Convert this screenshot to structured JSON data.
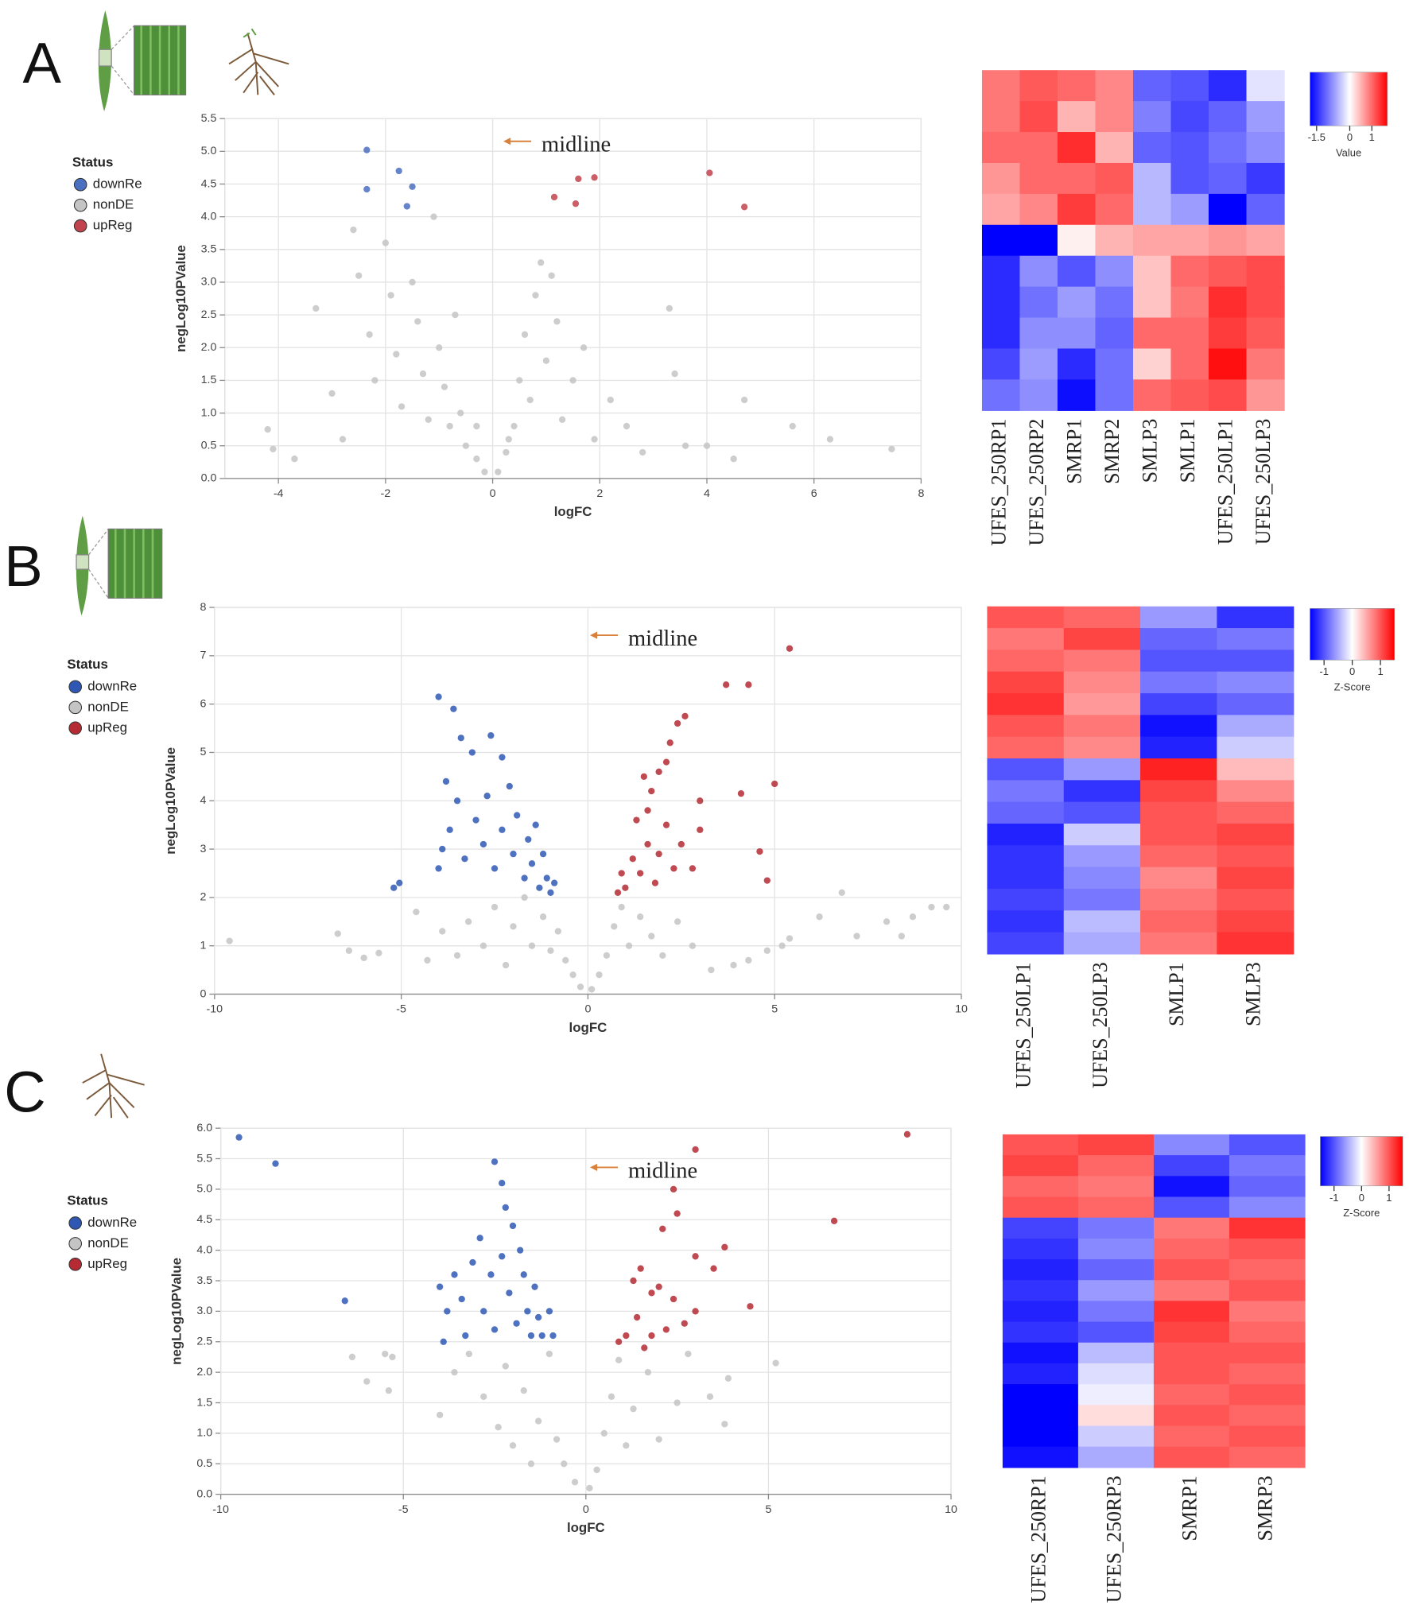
{
  "chart_data": [
    {
      "type": "scatter",
      "panel": "A",
      "annotation": "midline",
      "xlabel": "logFC",
      "ylabel": "negLog10PValue",
      "legend_title": "Status",
      "grid": true,
      "xlim": [
        -5,
        8
      ],
      "ylim": [
        0,
        5.5
      ],
      "xticks": [
        -4,
        -2,
        0,
        2,
        4,
        6,
        8
      ],
      "yticks": [
        {
          "value": 0,
          "label": "0.0"
        },
        0.5,
        {
          "value": 1,
          "label": "1.0"
        },
        1.5,
        {
          "value": 2,
          "label": "2.0"
        },
        2.5,
        {
          "value": 3,
          "label": "3.0"
        },
        3.5,
        {
          "value": 4,
          "label": "4.0"
        },
        4.5,
        {
          "value": 5,
          "label": "5.0"
        },
        5.5
      ],
      "series": [
        {
          "name": "downRe",
          "color": "#4b6fc1",
          "x": [
            -2.35,
            -2.35,
            -1.75,
            -1.5,
            -1.6
          ],
          "values": [
            5.02,
            4.42,
            4.7,
            4.46,
            4.16
          ]
        },
        {
          "name": "nonDE",
          "color": "#c4c4c4",
          "x": [
            -4.2,
            -4.1,
            -3.7,
            -3.3,
            -3.0,
            -2.8,
            -2.6,
            -2.5,
            -2.3,
            -2.2,
            -2.0,
            -1.9,
            -1.8,
            -1.7,
            -1.5,
            -1.4,
            -1.3,
            -1.2,
            -1.0,
            -0.9,
            -0.8,
            -0.6,
            -0.5,
            -0.3,
            -0.15,
            0.1,
            0.25,
            0.4,
            0.5,
            0.6,
            0.7,
            0.8,
            0.9,
            1.0,
            1.1,
            1.2,
            1.3,
            1.5,
            1.7,
            1.9,
            2.2,
            2.5,
            2.8,
            3.3,
            3.4,
            3.6,
            4.0,
            4.5,
            4.7,
            5.6,
            6.3,
            7.45,
            -0.3,
            0.3,
            -0.7,
            -1.1
          ],
          "values": [
            0.75,
            0.45,
            0.3,
            2.6,
            1.3,
            0.6,
            3.8,
            3.1,
            2.2,
            1.5,
            3.6,
            2.8,
            1.9,
            1.1,
            3.0,
            2.4,
            1.6,
            0.9,
            2.0,
            1.4,
            0.8,
            1.0,
            0.5,
            0.3,
            0.1,
            0.1,
            0.4,
            0.8,
            1.5,
            2.2,
            1.2,
            2.8,
            3.3,
            1.8,
            3.1,
            2.4,
            0.9,
            1.5,
            2.0,
            0.6,
            1.2,
            0.8,
            0.4,
            2.6,
            1.6,
            0.5,
            0.5,
            0.3,
            1.2,
            0.8,
            0.6,
            0.45,
            0.8,
            0.6,
            2.5,
            4.0
          ]
        },
        {
          "name": "upReg",
          "color": "#c1434d",
          "x": [
            1.15,
            1.6,
            1.9,
            1.55,
            4.05,
            4.7
          ],
          "values": [
            4.3,
            4.58,
            4.6,
            4.2,
            4.67,
            4.15
          ]
        }
      ]
    },
    {
      "type": "heatmap",
      "columns": [
        "UFES_250RP1",
        "UFES_250RP2",
        "SMRP1",
        "SMRP2",
        "SMLP3",
        "SMLP1",
        "UFES_250LP1",
        "UFES_250LP3"
      ],
      "zlim": [
        -1.8,
        1.7
      ],
      "colors": [
        "#0000ff",
        "#ffffff",
        "#ff0000"
      ],
      "colorbar_ticks": [
        -1.5,
        0,
        1
      ],
      "colorbar_label": "Value",
      "values": [
        [
          0.9,
          1.1,
          1.0,
          0.8,
          -1.1,
          -1.2,
          -1.5,
          -0.2
        ],
        [
          0.9,
          1.2,
          0.5,
          0.8,
          -0.9,
          -1.3,
          -1.1,
          -0.7
        ],
        [
          1.0,
          1.0,
          1.4,
          0.5,
          -1.1,
          -1.2,
          -1.0,
          -0.8
        ],
        [
          0.7,
          1.0,
          1.0,
          1.1,
          -0.5,
          -1.2,
          -1.1,
          -1.4
        ],
        [
          0.6,
          0.8,
          1.3,
          1.0,
          -0.5,
          -0.7,
          -1.8,
          -1.1
        ],
        [
          -1.8,
          -2.0,
          0.1,
          0.5,
          0.6,
          0.6,
          0.7,
          0.6
        ],
        [
          -1.5,
          -0.8,
          -1.2,
          -0.8,
          0.4,
          1.0,
          1.1,
          1.2
        ],
        [
          -1.5,
          -1.0,
          -0.7,
          -1.0,
          0.4,
          0.9,
          1.4,
          1.2
        ],
        [
          -1.5,
          -0.8,
          -0.8,
          -1.1,
          1.0,
          1.0,
          1.3,
          1.1
        ],
        [
          -1.3,
          -0.7,
          -1.5,
          -1.0,
          0.3,
          1.0,
          1.6,
          0.9
        ],
        [
          -1.0,
          -0.8,
          -1.7,
          -1.0,
          1.0,
          1.1,
          1.2,
          0.7
        ]
      ]
    },
    {
      "type": "scatter",
      "panel": "B",
      "annotation": "midline",
      "xlabel": "logFC",
      "ylabel": "negLog10PValue",
      "legend_title": "Status",
      "grid": true,
      "xlim": [
        -10,
        10
      ],
      "ylim": [
        0,
        8
      ],
      "xticks": [
        -10,
        -5,
        0,
        5,
        10
      ],
      "yticks": [
        0,
        1,
        2,
        3,
        4,
        5,
        6,
        7,
        8
      ],
      "series": [
        {
          "name": "downRe",
          "color": "#2f58b5",
          "x": [
            -5.2,
            -5.05,
            -4.0,
            -3.8,
            -3.6,
            -3.4,
            -3.1,
            -2.6,
            -2.3,
            -3.9,
            -3.7,
            -3.5,
            -3.3,
            -3.0,
            -2.8,
            -2.7,
            -2.5,
            -2.3,
            -2.1,
            -2.0,
            -1.9,
            -1.7,
            -1.6,
            -1.5,
            -1.4,
            -1.3,
            -1.2,
            -1.1,
            -1.0,
            -0.9,
            -4.0
          ],
          "values": [
            2.2,
            2.3,
            6.15,
            4.4,
            5.9,
            5.3,
            5.0,
            5.35,
            4.9,
            3.0,
            3.4,
            4.0,
            2.8,
            3.6,
            3.1,
            4.1,
            2.6,
            3.4,
            4.3,
            2.9,
            3.7,
            2.4,
            3.2,
            2.7,
            3.5,
            2.2,
            2.9,
            2.4,
            2.1,
            2.3,
            2.6
          ]
        },
        {
          "name": "nonDE",
          "color": "#c4c4c4",
          "x": [
            -9.6,
            -6.7,
            -6.4,
            -6.0,
            -5.6,
            -4.6,
            -4.3,
            -3.9,
            -3.5,
            -3.2,
            -2.8,
            -2.5,
            -2.2,
            -2.0,
            -1.7,
            -1.5,
            -1.2,
            -1.0,
            -0.8,
            -0.6,
            -0.4,
            -0.2,
            0.1,
            0.3,
            0.5,
            0.7,
            0.9,
            1.1,
            1.4,
            1.7,
            2.0,
            2.4,
            2.8,
            3.3,
            3.9,
            4.3,
            4.8,
            5.2,
            5.4,
            6.2,
            6.8,
            7.2,
            8.0,
            8.4,
            8.7,
            9.2,
            9.6
          ],
          "values": [
            1.1,
            1.25,
            0.9,
            0.75,
            0.85,
            1.7,
            0.7,
            1.3,
            0.8,
            1.5,
            1.0,
            1.8,
            0.6,
            1.4,
            2.0,
            1.0,
            1.6,
            0.9,
            1.3,
            0.7,
            0.4,
            0.15,
            0.1,
            0.4,
            0.8,
            1.4,
            1.8,
            1.0,
            1.6,
            1.2,
            0.8,
            1.5,
            1.0,
            0.5,
            0.6,
            0.7,
            0.9,
            1.0,
            1.15,
            1.6,
            2.1,
            1.2,
            1.5,
            1.2,
            1.6,
            1.8,
            1.8
          ]
        },
        {
          "name": "upReg",
          "color": "#b52a33",
          "x": [
            5.4,
            3.7,
            4.3,
            2.6,
            2.4,
            2.2,
            2.1,
            1.9,
            1.7,
            1.6,
            1.5,
            4.1,
            5.0,
            4.6,
            4.8,
            3.0,
            3.0,
            2.8,
            2.5,
            2.3,
            2.1,
            1.9,
            1.8,
            1.6,
            1.4,
            1.2,
            1.0,
            0.9,
            0.8,
            1.3
          ],
          "values": [
            7.15,
            6.4,
            6.4,
            5.75,
            5.6,
            5.2,
            4.8,
            4.6,
            4.2,
            3.8,
            4.5,
            4.15,
            4.35,
            2.95,
            2.35,
            4.0,
            3.4,
            2.6,
            3.1,
            2.6,
            3.5,
            2.9,
            2.3,
            3.1,
            2.5,
            2.8,
            2.2,
            2.5,
            2.1,
            3.6
          ]
        }
      ]
    },
    {
      "type": "heatmap",
      "columns": [
        "UFES_250LP1",
        "UFES_250LP3",
        "SMLP1",
        "SMLP3"
      ],
      "zlim": [
        -1.5,
        1.5
      ],
      "colors": [
        "#0000ff",
        "#ffffff",
        "#ff0000"
      ],
      "colorbar_ticks": [
        -1,
        0,
        1
      ],
      "colorbar_label": "Z-Score",
      "values": [
        [
          1.0,
          0.9,
          -0.6,
          -1.2
        ],
        [
          0.8,
          1.1,
          -0.9,
          -0.8
        ],
        [
          0.9,
          0.8,
          -1.0,
          -1.0
        ],
        [
          1.1,
          0.7,
          -0.8,
          -0.7
        ],
        [
          1.2,
          0.6,
          -1.1,
          -0.9
        ],
        [
          1.0,
          0.8,
          -1.4,
          -0.5
        ],
        [
          0.9,
          0.7,
          -1.3,
          -0.3
        ],
        [
          -1.0,
          -0.6,
          1.3,
          0.4
        ],
        [
          -0.8,
          -1.2,
          1.1,
          0.7
        ],
        [
          -0.9,
          -1.0,
          1.0,
          0.9
        ],
        [
          -1.3,
          -0.3,
          1.0,
          1.1
        ],
        [
          -1.2,
          -0.6,
          0.9,
          1.0
        ],
        [
          -1.2,
          -0.7,
          0.7,
          1.1
        ],
        [
          -1.1,
          -0.8,
          0.8,
          1.0
        ],
        [
          -1.2,
          -0.4,
          0.9,
          1.1
        ],
        [
          -1.1,
          -0.5,
          0.8,
          1.2
        ]
      ]
    },
    {
      "type": "scatter",
      "panel": "C",
      "annotation": "midline",
      "xlabel": "logFC",
      "ylabel": "negLog10PValue",
      "legend_title": "Status",
      "grid": true,
      "xlim": [
        -10,
        10
      ],
      "ylim": [
        0,
        6
      ],
      "xticks": [
        -10,
        -5,
        0,
        5,
        10
      ],
      "yticks": [
        {
          "value": 0,
          "label": "0.0"
        },
        0.5,
        {
          "value": 1,
          "label": "1.0"
        },
        1.5,
        {
          "value": 2,
          "label": "2.0"
        },
        2.5,
        {
          "value": 3,
          "label": "3.0"
        },
        3.5,
        {
          "value": 4,
          "label": "4.0"
        },
        4.5,
        {
          "value": 5,
          "label": "5.0"
        },
        5.5,
        {
          "value": 6,
          "label": "6.0"
        }
      ],
      "series": [
        {
          "name": "downRe",
          "color": "#2f58b5",
          "x": [
            -9.5,
            -8.5,
            -6.6,
            -2.5,
            -2.3,
            -2.2,
            -4.0,
            -3.8,
            -3.6,
            -3.9,
            -3.4,
            -3.1,
            -2.9,
            -2.8,
            -2.6,
            -2.5,
            -2.3,
            -2.1,
            -2.0,
            -1.9,
            -1.7,
            -1.6,
            -1.5,
            -1.4,
            -1.3,
            -1.2,
            -1.0,
            -0.9,
            -3.3,
            -1.8
          ],
          "values": [
            5.85,
            5.42,
            3.17,
            5.45,
            5.1,
            4.7,
            3.4,
            3.0,
            3.6,
            2.5,
            3.2,
            3.8,
            4.2,
            3.0,
            3.6,
            2.7,
            3.9,
            3.3,
            4.4,
            2.8,
            3.6,
            3.0,
            2.6,
            3.4,
            2.9,
            2.6,
            3.0,
            2.6,
            2.6,
            4.0
          ]
        },
        {
          "name": "nonDE",
          "color": "#c4c4c4",
          "x": [
            -6.4,
            -6.0,
            -5.5,
            -5.3,
            -5.4,
            -4.0,
            -3.6,
            -3.2,
            -2.8,
            -2.4,
            -2.2,
            -2.0,
            -1.7,
            -1.5,
            -1.3,
            -1.0,
            -0.8,
            -0.6,
            -0.3,
            0.1,
            0.3,
            0.5,
            0.7,
            0.9,
            1.1,
            1.3,
            1.7,
            2.0,
            2.5,
            3.4,
            3.9,
            3.8,
            5.2,
            2.8
          ],
          "values": [
            2.25,
            1.85,
            2.3,
            2.25,
            1.7,
            1.3,
            2.0,
            2.3,
            1.6,
            1.1,
            2.1,
            0.8,
            1.7,
            0.5,
            1.2,
            2.3,
            0.9,
            0.5,
            0.2,
            0.1,
            0.4,
            1.0,
            1.6,
            2.2,
            0.8,
            1.4,
            2.0,
            0.9,
            1.5,
            1.6,
            1.9,
            1.15,
            2.15,
            2.3
          ]
        },
        {
          "name": "upReg",
          "color": "#b52a33",
          "x": [
            8.8,
            6.8,
            3.0,
            2.4,
            2.5,
            2.1,
            3.8,
            3.0,
            3.5,
            4.5,
            1.5,
            1.3,
            1.8,
            2.4,
            3.0,
            2.7,
            2.2,
            1.8,
            1.4,
            1.1,
            0.9,
            1.6,
            2.0
          ],
          "values": [
            5.9,
            4.48,
            5.65,
            5.0,
            4.6,
            4.35,
            4.05,
            3.9,
            3.7,
            3.08,
            3.7,
            3.5,
            3.3,
            3.2,
            3.0,
            2.8,
            2.7,
            2.6,
            2.9,
            2.6,
            2.5,
            2.4,
            3.4
          ]
        }
      ]
    },
    {
      "type": "heatmap",
      "columns": [
        "UFES_250RP1",
        "UFES_250RP3",
        "SMRP1",
        "SMRP3"
      ],
      "zlim": [
        -1.5,
        1.5
      ],
      "colors": [
        "#0000ff",
        "#ffffff",
        "#ff0000"
      ],
      "colorbar_ticks": [
        -1,
        0,
        1
      ],
      "colorbar_label": "Z-Score",
      "values": [
        [
          1.0,
          1.1,
          -0.7,
          -1.0
        ],
        [
          1.1,
          0.9,
          -1.1,
          -0.8
        ],
        [
          0.9,
          0.8,
          -1.4,
          -0.9
        ],
        [
          1.0,
          0.9,
          -1.0,
          -0.7
        ],
        [
          -1.1,
          -0.8,
          0.8,
          1.2
        ],
        [
          -1.2,
          -0.7,
          0.9,
          1.0
        ],
        [
          -1.3,
          -0.9,
          1.0,
          0.9
        ],
        [
          -1.2,
          -0.6,
          0.8,
          1.0
        ],
        [
          -1.3,
          -0.8,
          1.2,
          0.8
        ],
        [
          -1.2,
          -1.0,
          1.1,
          0.9
        ],
        [
          -1.4,
          -0.4,
          1.0,
          1.0
        ],
        [
          -1.3,
          -0.2,
          1.0,
          0.9
        ],
        [
          -1.5,
          -0.1,
          0.9,
          1.0
        ],
        [
          -1.5,
          0.2,
          1.0,
          0.9
        ],
        [
          -1.5,
          -0.3,
          0.9,
          1.0
        ],
        [
          -1.4,
          -0.5,
          1.0,
          0.9
        ]
      ]
    }
  ]
}
